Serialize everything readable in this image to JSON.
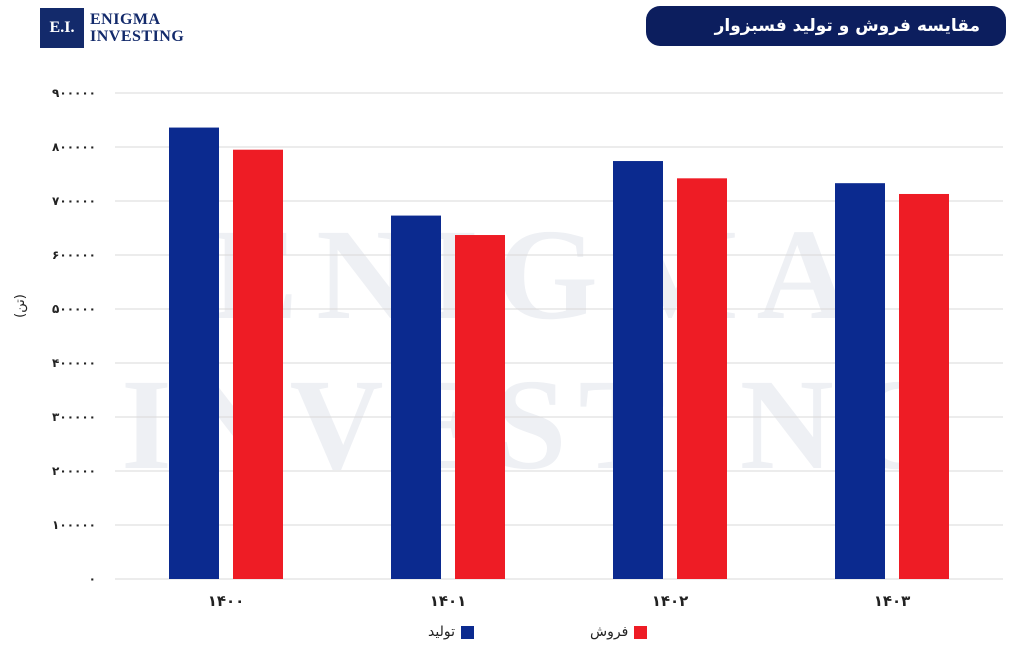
{
  "logo": {
    "badge": "E.I.",
    "line1": "ENIGMA",
    "line2": "INVESTING",
    "watermark_line1": "ENIGMA",
    "watermark_line2": "INVESTING"
  },
  "header": {
    "title": "مقایسه فروش و تولید فسبزوار"
  },
  "colors": {
    "production": "#0b2a8f",
    "sales": "#ee1c25",
    "grid": "#d9d9d9",
    "title_bg": "#0c1e5e",
    "logo": "#132a6b"
  },
  "chart_data": {
    "type": "bar",
    "categories": [
      "۱۴۰۰",
      "۱۴۰۱",
      "۱۴۰۲",
      "۱۴۰۳"
    ],
    "series": [
      {
        "name": "تولید",
        "values": [
          836000,
          673000,
          774000,
          733000
        ]
      },
      {
        "name": "فروش",
        "values": [
          795000,
          637000,
          742000,
          713000
        ]
      }
    ],
    "ylabel": "(تن)",
    "ylim": [
      0,
      900000
    ],
    "yticks": [
      "۰",
      "۱۰۰۰۰۰",
      "۲۰۰۰۰۰",
      "۳۰۰۰۰۰",
      "۴۰۰۰۰۰",
      "۵۰۰۰۰۰",
      "۶۰۰۰۰۰",
      "۷۰۰۰۰۰",
      "۸۰۰۰۰۰",
      "۹۰۰۰۰۰"
    ],
    "grid": true,
    "legend": "bottom"
  }
}
